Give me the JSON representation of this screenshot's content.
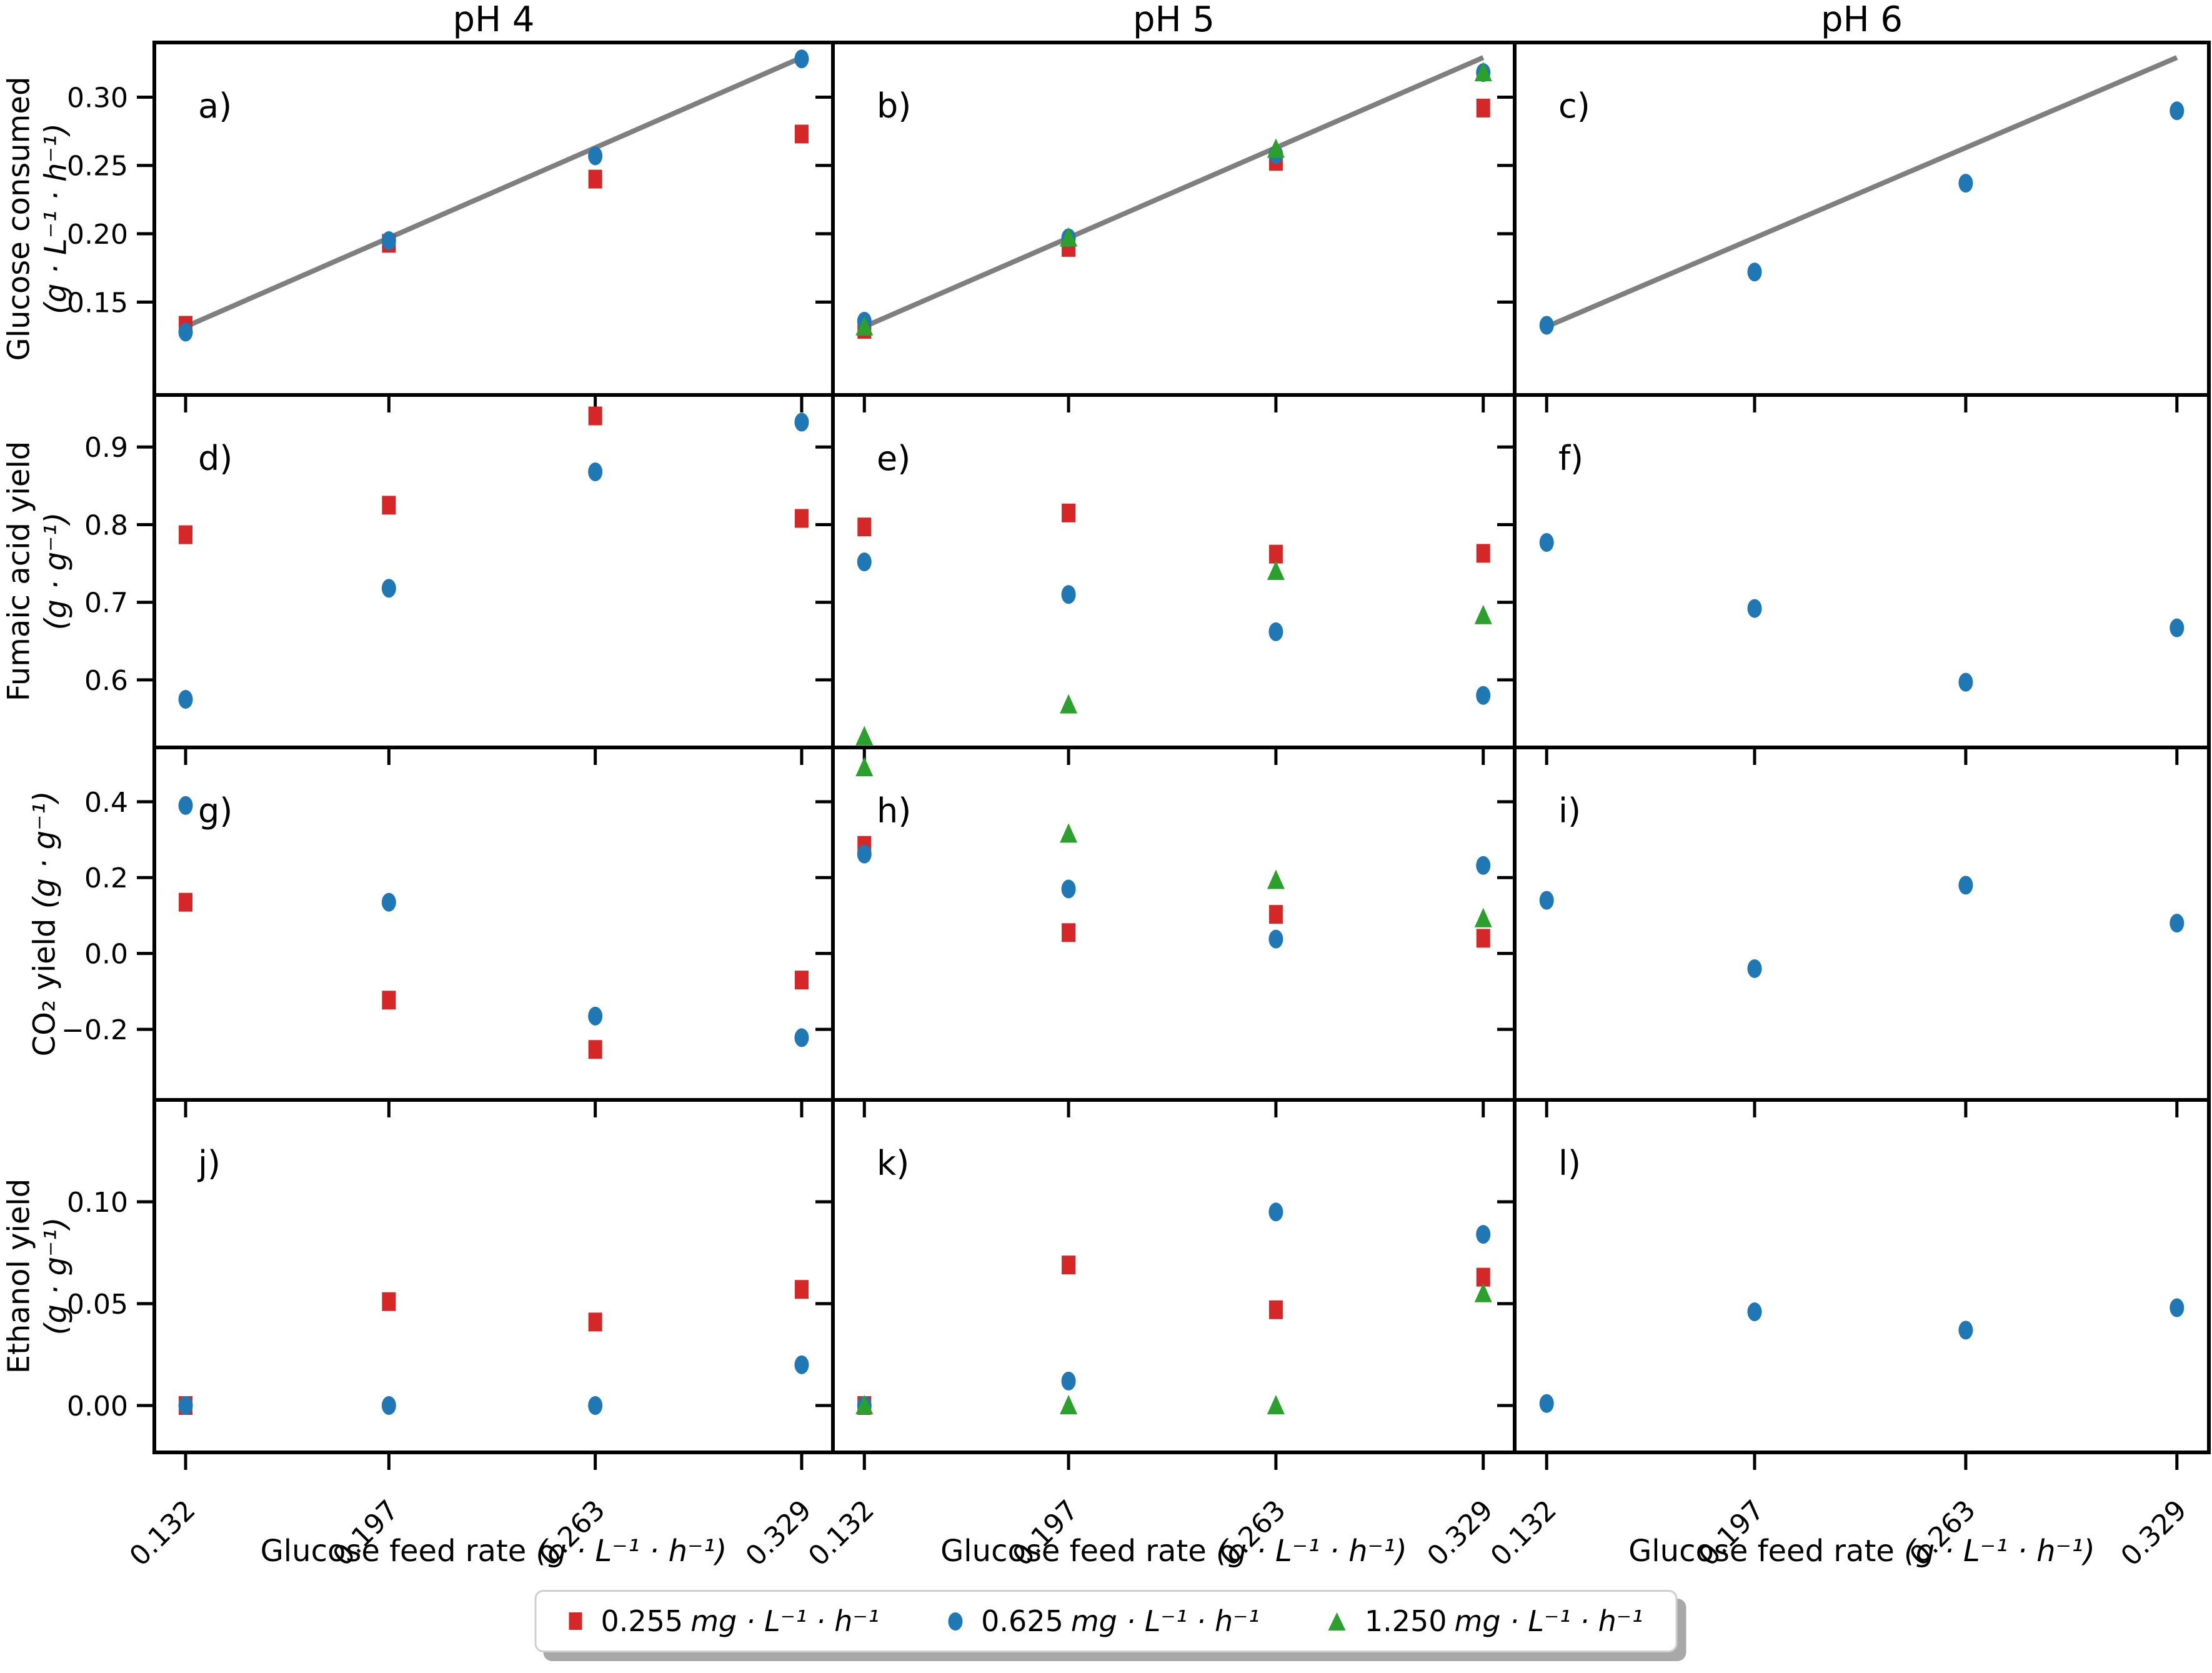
{
  "chart_data": {
    "type": "scatter",
    "description": "4x3 grid of scatter subplots a)-l); columns are pH conditions, rows are measured responses vs glucose feed rate",
    "columns": [
      {
        "title": "pH 4"
      },
      {
        "title": "pH 5"
      },
      {
        "title": "pH 6"
      }
    ],
    "x_axis": {
      "label": "Glucose feed rate",
      "unit": "(g · L⁻¹ · h⁻¹)",
      "x_values": [
        0.132,
        0.197,
        0.263,
        0.329
      ],
      "tick_labels": [
        "0.132",
        "0.197",
        "0.263",
        "0.329"
      ],
      "xlim": [
        0.122,
        0.339
      ]
    },
    "rows": [
      {
        "ylabel": "Glucose consumed",
        "ylabel_unit": "(g · L⁻¹ · h⁻¹)",
        "ylim": [
          0.082,
          0.34
        ],
        "yticks": [
          0.15,
          0.2,
          0.25,
          0.3
        ],
        "ytick_labels": [
          "0.15",
          "0.20",
          "0.25",
          "0.30"
        ]
      },
      {
        "ylabel": "Fumaic acid yield",
        "ylabel_unit": "(g · g⁻¹)",
        "ylim": [
          0.513,
          0.967
        ],
        "yticks": [
          0.6,
          0.7,
          0.8,
          0.9
        ],
        "ytick_labels": [
          "0.6",
          "0.7",
          "0.8",
          "0.9"
        ]
      },
      {
        "ylabel": "CO₂ yield",
        "ylabel_unit": "(g · g⁻¹)",
        "ylabel_inline": true,
        "ylim": [
          -0.386,
          0.543
        ],
        "yticks": [
          -0.2,
          0.0,
          0.2,
          0.4
        ],
        "ytick_labels": [
          "−0.2",
          "0.0",
          "0.2",
          "0.4"
        ]
      },
      {
        "ylabel": "Ethanol yield",
        "ylabel_unit": "(g · g⁻¹)",
        "ylim": [
          -0.023,
          0.15
        ],
        "yticks": [
          0.0,
          0.05,
          0.1
        ],
        "ytick_labels": [
          "0.00",
          "0.05",
          "0.10"
        ]
      }
    ],
    "identity_line_color": "#7f7f7f",
    "grid": false,
    "legend_position": "bottom-center",
    "panels": [
      {
        "label": "a)",
        "row": 0,
        "col": 0,
        "line": true,
        "series": [
          {
            "name": "0.255 mg·L⁻¹·h⁻¹",
            "marker": "square",
            "color": "#d62728",
            "y": [
              0.133,
              0.193,
              0.24,
              0.273
            ]
          },
          {
            "name": "0.625 mg·L⁻¹·h⁻¹",
            "marker": "circle",
            "color": "#1f77b4",
            "y": [
              0.128,
              0.195,
              0.257,
              0.328
            ]
          }
        ]
      },
      {
        "label": "b)",
        "row": 0,
        "col": 1,
        "line": true,
        "series": [
          {
            "name": "0.255 mg·L⁻¹·h⁻¹",
            "marker": "square",
            "color": "#d62728",
            "y": [
              0.13,
              0.19,
              0.253,
              0.292
            ]
          },
          {
            "name": "0.625 mg·L⁻¹·h⁻¹",
            "marker": "circle",
            "color": "#1f77b4",
            "y": [
              0.136,
              0.197,
              0.258,
              0.318
            ]
          },
          {
            "name": "1.250 mg·L⁻¹·h⁻¹",
            "marker": "triangle",
            "color": "#2ca02c",
            "y": [
              0.132,
              0.197,
              0.262,
              0.318
            ]
          }
        ]
      },
      {
        "label": "c)",
        "row": 0,
        "col": 2,
        "line": true,
        "series": [
          {
            "name": "0.625 mg·L⁻¹·h⁻¹",
            "marker": "circle",
            "color": "#1f77b4",
            "y": [
              0.133,
              0.172,
              0.237,
              0.29
            ]
          }
        ]
      },
      {
        "label": "d)",
        "row": 1,
        "col": 0,
        "line": false,
        "series": [
          {
            "name": "0.255 mg·L⁻¹·h⁻¹",
            "marker": "square",
            "color": "#d62728",
            "y": [
              0.787,
              0.825,
              0.94,
              0.808
            ]
          },
          {
            "name": "0.625 mg·L⁻¹·h⁻¹",
            "marker": "circle",
            "color": "#1f77b4",
            "y": [
              0.575,
              0.718,
              0.868,
              0.932
            ]
          }
        ]
      },
      {
        "label": "e)",
        "row": 1,
        "col": 1,
        "line": false,
        "series": [
          {
            "name": "0.255 mg·L⁻¹·h⁻¹",
            "marker": "square",
            "color": "#d62728",
            "y": [
              0.797,
              0.815,
              0.762,
              0.763
            ]
          },
          {
            "name": "0.625 mg·L⁻¹·h⁻¹",
            "marker": "circle",
            "color": "#1f77b4",
            "y": [
              0.752,
              0.71,
              0.662,
              0.58
            ]
          },
          {
            "name": "1.250 mg·L⁻¹·h⁻¹",
            "marker": "triangle",
            "color": "#2ca02c",
            "y": [
              0.527,
              0.568,
              0.74,
              0.683
            ]
          }
        ]
      },
      {
        "label": "f)",
        "row": 1,
        "col": 2,
        "line": false,
        "series": [
          {
            "name": "0.625 mg·L⁻¹·h⁻¹",
            "marker": "circle",
            "color": "#1f77b4",
            "y": [
              0.777,
              0.692,
              0.597,
              0.667
            ]
          }
        ]
      },
      {
        "label": "g)",
        "row": 2,
        "col": 0,
        "line": false,
        "series": [
          {
            "name": "0.255 mg·L⁻¹·h⁻¹",
            "marker": "square",
            "color": "#d62728",
            "y": [
              0.135,
              -0.123,
              -0.253,
              -0.07
            ]
          },
          {
            "name": "0.625 mg·L⁻¹·h⁻¹",
            "marker": "circle",
            "color": "#1f77b4",
            "y": [
              0.39,
              0.135,
              -0.165,
              -0.222
            ]
          }
        ]
      },
      {
        "label": "h)",
        "row": 2,
        "col": 1,
        "line": false,
        "series": [
          {
            "name": "0.255 mg·L⁻¹·h⁻¹",
            "marker": "square",
            "color": "#d62728",
            "y": [
              0.285,
              0.055,
              0.103,
              0.04
            ]
          },
          {
            "name": "0.625 mg·L⁻¹·h⁻¹",
            "marker": "circle",
            "color": "#1f77b4",
            "y": [
              0.262,
              0.17,
              0.038,
              0.232
            ]
          },
          {
            "name": "1.250 mg·L⁻¹·h⁻¹",
            "marker": "triangle",
            "color": "#2ca02c",
            "y": [
              0.49,
              0.315,
              0.193,
              0.092
            ]
          }
        ]
      },
      {
        "label": "i)",
        "row": 2,
        "col": 2,
        "line": false,
        "series": [
          {
            "name": "0.625 mg·L⁻¹·h⁻¹",
            "marker": "circle",
            "color": "#1f77b4",
            "y": [
              0.14,
              -0.04,
              0.18,
              0.08
            ]
          }
        ]
      },
      {
        "label": "j)",
        "row": 3,
        "col": 0,
        "line": false,
        "series": [
          {
            "name": "0.255 mg·L⁻¹·h⁻¹",
            "marker": "square",
            "color": "#d62728",
            "y": [
              0.0,
              0.051,
              0.041,
              0.057
            ]
          },
          {
            "name": "0.625 mg·L⁻¹·h⁻¹",
            "marker": "circle",
            "color": "#1f77b4",
            "y": [
              0.0,
              0.0,
              0.0,
              0.02
            ]
          }
        ]
      },
      {
        "label": "k)",
        "row": 3,
        "col": 1,
        "line": false,
        "series": [
          {
            "name": "0.255 mg·L⁻¹·h⁻¹",
            "marker": "square",
            "color": "#d62728",
            "y": [
              0.0,
              0.069,
              0.047,
              0.063
            ]
          },
          {
            "name": "0.625 mg·L⁻¹·h⁻¹",
            "marker": "circle",
            "color": "#1f77b4",
            "y": [
              0.0,
              0.012,
              0.095,
              0.084
            ]
          },
          {
            "name": "1.250 mg·L⁻¹·h⁻¹",
            "marker": "triangle",
            "color": "#2ca02c",
            "y": [
              0.0,
              0.0,
              0.0,
              0.055
            ]
          }
        ]
      },
      {
        "label": "l)",
        "row": 3,
        "col": 2,
        "line": false,
        "series": [
          {
            "name": "0.625 mg·L⁻¹·h⁻¹",
            "marker": "circle",
            "color": "#1f77b4",
            "y": [
              0.001,
              0.046,
              0.037,
              0.048
            ]
          }
        ]
      }
    ],
    "legend": {
      "entries": [
        {
          "marker": "square",
          "color": "#d62728",
          "value": "0.255",
          "unit": "mg · L⁻¹ · h⁻¹"
        },
        {
          "marker": "circle",
          "color": "#1f77b4",
          "value": "0.625",
          "unit": "mg · L⁻¹ · h⁻¹"
        },
        {
          "marker": "triangle",
          "color": "#2ca02c",
          "value": "1.250",
          "unit": "mg · L⁻¹ · h⁻¹"
        }
      ]
    }
  }
}
